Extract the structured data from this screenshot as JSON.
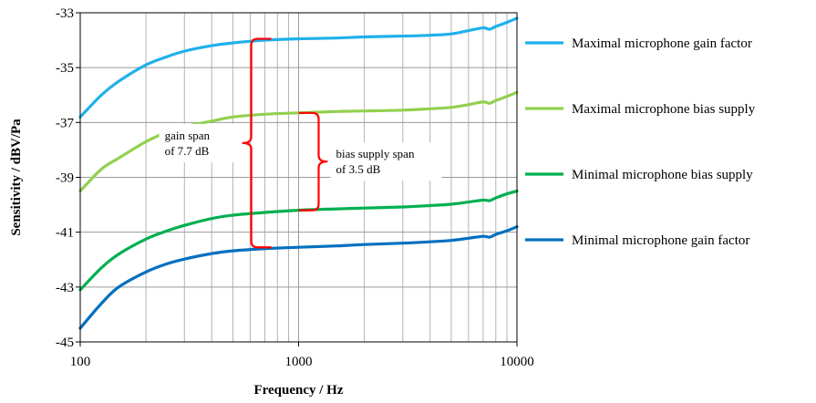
{
  "chart_data": {
    "type": "line",
    "xlabel": "Frequency / Hz",
    "ylabel": "Sensitivity / dBV/Pa",
    "xscale": "log",
    "xlim": [
      100,
      10000
    ],
    "ylim": [
      -45,
      -33
    ],
    "xticks": [
      100,
      1000,
      10000
    ],
    "xtick_labels": [
      "100",
      "1000",
      "10000"
    ],
    "yticks": [
      -45,
      -43,
      -41,
      -39,
      -37,
      -35,
      -33
    ],
    "ytick_labels": [
      "-45",
      "-43",
      "-41",
      "-39",
      "-37",
      "-35",
      "-33"
    ],
    "grid": true,
    "legend_position": "right",
    "series": [
      {
        "name": "Maximal microphone gain factor",
        "color": "#1fb0ea",
        "x": [
          100,
          125,
          150,
          200,
          250,
          300,
          400,
          500,
          700,
          1000,
          1500,
          2000,
          3000,
          4000,
          5000,
          6000,
          7000,
          7500,
          8000,
          9000,
          10000
        ],
        "y": [
          -36.8,
          -36.0,
          -35.5,
          -34.9,
          -34.6,
          -34.4,
          -34.2,
          -34.1,
          -34.0,
          -33.95,
          -33.92,
          -33.88,
          -33.85,
          -33.82,
          -33.77,
          -33.65,
          -33.55,
          -33.6,
          -33.5,
          -33.35,
          -33.2
        ]
      },
      {
        "name": "Maximal microphone bias supply",
        "color": "#92d050",
        "x": [
          100,
          125,
          150,
          200,
          250,
          300,
          400,
          500,
          700,
          1000,
          1500,
          2000,
          3000,
          4000,
          5000,
          6000,
          7000,
          7500,
          8000,
          9000,
          10000
        ],
        "y": [
          -39.5,
          -38.7,
          -38.3,
          -37.7,
          -37.35,
          -37.15,
          -36.95,
          -36.8,
          -36.7,
          -36.65,
          -36.6,
          -36.58,
          -36.55,
          -36.5,
          -36.45,
          -36.35,
          -36.25,
          -36.3,
          -36.2,
          -36.05,
          -35.9
        ]
      },
      {
        "name": "Minimal microphone bias supply",
        "color": "#00b050",
        "x": [
          100,
          125,
          150,
          200,
          250,
          300,
          400,
          500,
          700,
          1000,
          1500,
          2000,
          3000,
          4000,
          5000,
          6000,
          7000,
          7500,
          8000,
          9000,
          10000
        ],
        "y": [
          -43.1,
          -42.3,
          -41.8,
          -41.25,
          -40.95,
          -40.75,
          -40.5,
          -40.38,
          -40.28,
          -40.2,
          -40.15,
          -40.12,
          -40.08,
          -40.03,
          -39.98,
          -39.9,
          -39.83,
          -39.85,
          -39.75,
          -39.6,
          -39.5
        ]
      },
      {
        "name": "Minimal microphone gain factor",
        "color": "#0070c0",
        "x": [
          100,
          125,
          150,
          200,
          250,
          300,
          400,
          500,
          700,
          1000,
          1500,
          2000,
          3000,
          4000,
          5000,
          6000,
          7000,
          7500,
          8000,
          9000,
          10000
        ],
        "y": [
          -44.5,
          -43.6,
          -43.0,
          -42.45,
          -42.15,
          -41.98,
          -41.78,
          -41.68,
          -41.6,
          -41.55,
          -41.5,
          -41.45,
          -41.4,
          -41.35,
          -41.3,
          -41.22,
          -41.15,
          -41.18,
          -41.08,
          -40.95,
          -40.8
        ]
      }
    ],
    "annotations": [
      {
        "lines": [
          "gain span",
          "of 7.7 dB"
        ],
        "color": "#ff0000",
        "bracket_x": 750,
        "bracket_y": [
          -41.55,
          -33.95
        ],
        "bracket_side": "left"
      },
      {
        "lines": [
          "bias supply span",
          "of 3.5 dB"
        ],
        "color": "#ff0000",
        "bracket_x": 1000,
        "bracket_y": [
          -40.2,
          -36.65
        ],
        "bracket_side": "right"
      }
    ]
  }
}
